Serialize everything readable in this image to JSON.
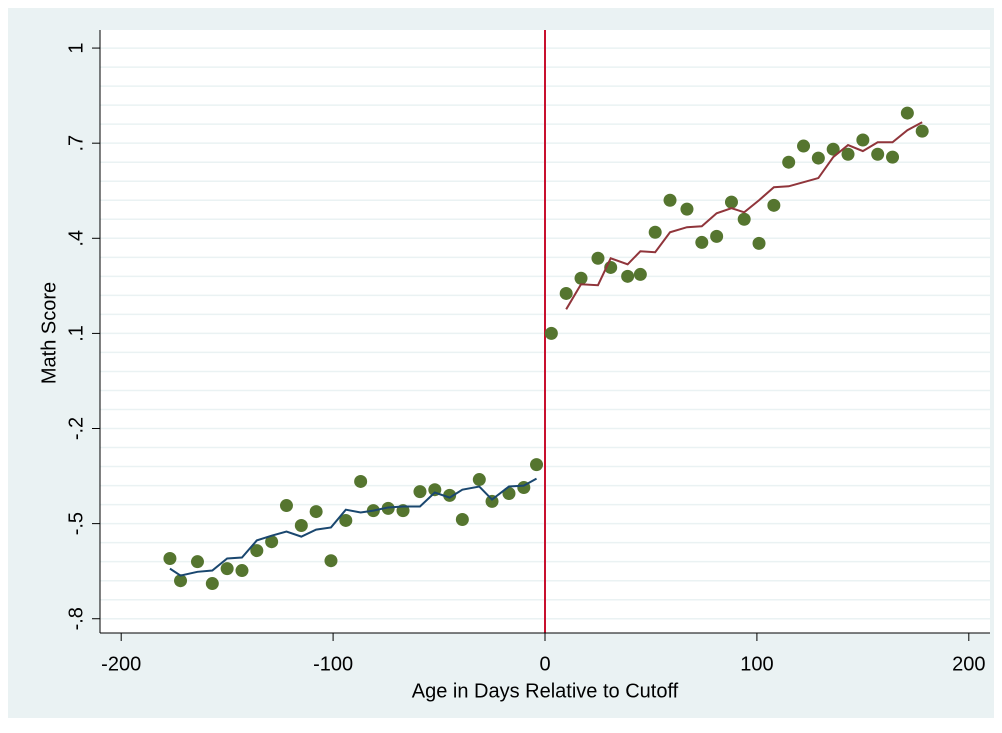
{
  "chart_data": {
    "type": "scatter",
    "xlabel": "Age in Days Relative to Cutoff",
    "ylabel": "Math Score",
    "xlim": [
      -210,
      210
    ],
    "ylim": [
      -0.845,
      1.057
    ],
    "xticks": [
      -200,
      -100,
      0,
      100,
      200
    ],
    "yticks": [
      {
        "value": -0.8,
        "label": "-.8"
      },
      {
        "value": -0.5,
        "label": "-.5"
      },
      {
        "value": -0.2,
        "label": "-.2"
      },
      {
        "value": 0.1,
        "label": ".1"
      },
      {
        "value": 0.4,
        "label": ".4"
      },
      {
        "value": 0.7,
        "label": ".7"
      },
      1
    ],
    "ygrid": [
      -0.8,
      -0.74,
      -0.68,
      -0.62,
      -0.56,
      -0.5,
      -0.44,
      -0.38,
      -0.32,
      -0.26,
      -0.2,
      -0.14,
      -0.08,
      -0.02,
      0.04,
      0.1,
      0.16,
      0.22,
      0.28,
      0.34,
      0.4,
      0.46,
      0.52,
      0.58,
      0.64,
      0.7,
      0.76,
      0.82,
      0.88,
      0.94,
      1
    ],
    "grid": true,
    "vline": {
      "x": 0,
      "color": "#c8102e"
    },
    "series": [
      {
        "mode": "markers",
        "color": "#55752f",
        "x": [
          -177,
          -172,
          -164,
          -157,
          -150,
          -143,
          -136,
          -129,
          -122,
          -115,
          -108,
          -101,
          -94,
          -87,
          -81,
          -74,
          -67,
          -59,
          -52,
          -45,
          -39,
          -31,
          -25,
          -17,
          -10,
          -4,
          3,
          10,
          17,
          25,
          31,
          39,
          45,
          52,
          59,
          67,
          74,
          81,
          88,
          94,
          101,
          108,
          115,
          122,
          129,
          136,
          143,
          150,
          157,
          164,
          171,
          178
        ],
        "values": [
          -0.61,
          -0.68,
          -0.62,
          -0.689,
          -0.642,
          -0.648,
          -0.585,
          -0.557,
          -0.443,
          -0.506,
          -0.462,
          -0.617,
          -0.49,
          -0.367,
          -0.459,
          -0.452,
          -0.459,
          -0.399,
          -0.393,
          -0.411,
          -0.487,
          -0.361,
          -0.43,
          -0.405,
          -0.386,
          -0.314,
          0.1,
          0.226,
          0.274,
          0.337,
          0.308,
          0.28,
          0.286,
          0.419,
          0.52,
          0.492,
          0.387,
          0.406,
          0.514,
          0.46,
          0.384,
          0.504,
          0.64,
          0.691,
          0.653,
          0.681,
          0.665,
          0.71,
          0.665,
          0.656,
          0.795,
          0.738
        ]
      },
      {
        "mode": "line",
        "color": "#1a476f",
        "x": [
          -177,
          -172,
          -164,
          -157,
          -150,
          -143,
          -136,
          -129,
          -122,
          -115,
          -108,
          -101,
          -94,
          -87,
          -81,
          -74,
          -67,
          -59,
          -52,
          -45,
          -39,
          -31,
          -25,
          -17,
          -10,
          -4
        ],
        "values": [
          -0.642,
          -0.664,
          -0.652,
          -0.648,
          -0.61,
          -0.607,
          -0.553,
          -0.538,
          -0.525,
          -0.541,
          -0.519,
          -0.512,
          -0.456,
          -0.465,
          -0.459,
          -0.449,
          -0.446,
          -0.446,
          -0.402,
          -0.418,
          -0.393,
          -0.383,
          -0.424,
          -0.383,
          -0.38,
          -0.358
        ]
      },
      {
        "mode": "line",
        "color": "#90353b",
        "x": [
          10,
          17,
          25,
          31,
          39,
          45,
          52,
          59,
          67,
          74,
          81,
          88,
          94,
          101,
          108,
          115,
          122,
          129,
          136,
          143,
          150,
          157,
          164,
          171,
          178
        ],
        "values": [
          0.176,
          0.255,
          0.252,
          0.337,
          0.318,
          0.359,
          0.356,
          0.419,
          0.435,
          0.438,
          0.479,
          0.495,
          0.482,
          0.52,
          0.561,
          0.564,
          0.577,
          0.59,
          0.656,
          0.694,
          0.675,
          0.703,
          0.703,
          0.741,
          0.766
        ]
      }
    ]
  }
}
